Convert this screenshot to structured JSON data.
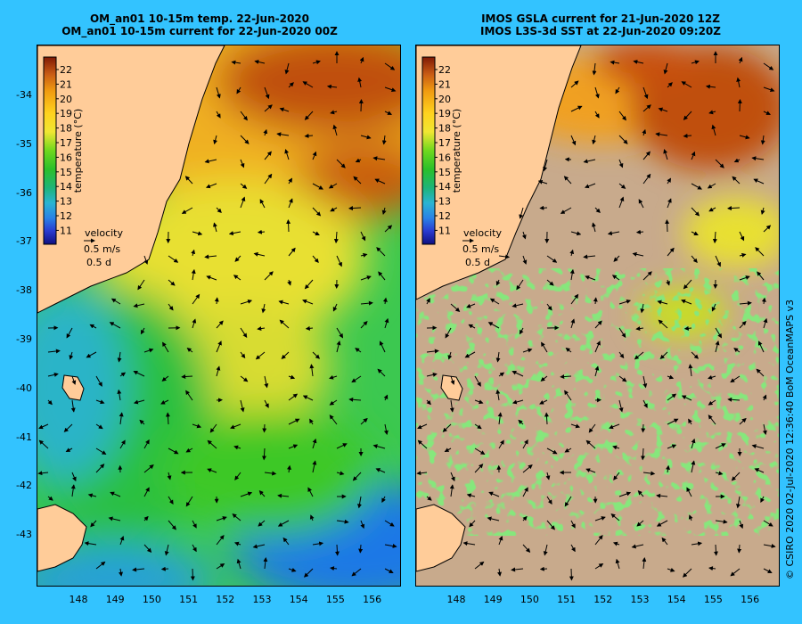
{
  "left_panel": {
    "title_line1": "OM_an01 10-15m temp. 22-Jun-2020",
    "title_line2": "OM_an01 10-15m current for 22-Jun-2020 00Z"
  },
  "right_panel": {
    "title_line1": "IMOS GSLA current for 21-Jun-2020 12Z",
    "title_line2": "IMOS L3S-3d SST at 22-Jun-2020 09:20Z"
  },
  "colorbar": {
    "ticks": [
      "22",
      "21",
      "20",
      "19",
      "18",
      "17",
      "16",
      "15",
      "14",
      "13",
      "12",
      "11"
    ],
    "label": "temperature (°C)"
  },
  "velocity_legend": {
    "title": "velocity",
    "speed": "0.5 m/s",
    "duration": "0.5 d"
  },
  "axes": {
    "lat_ticks": [
      "-34",
      "-35",
      "-36",
      "-37",
      "-38",
      "-39",
      "-40",
      "-41",
      "-42",
      "-43"
    ],
    "lon_ticks": [
      "148",
      "149",
      "150",
      "151",
      "152",
      "153",
      "154",
      "155",
      "156"
    ]
  },
  "credit": "© CSIRO 2020   02-Jul-2020 12:36:40 BoM OceanMAPS v3",
  "colors": {
    "background": "#33c3ff",
    "land": "#ffcc99",
    "no_data": "#c8aa8c"
  }
}
